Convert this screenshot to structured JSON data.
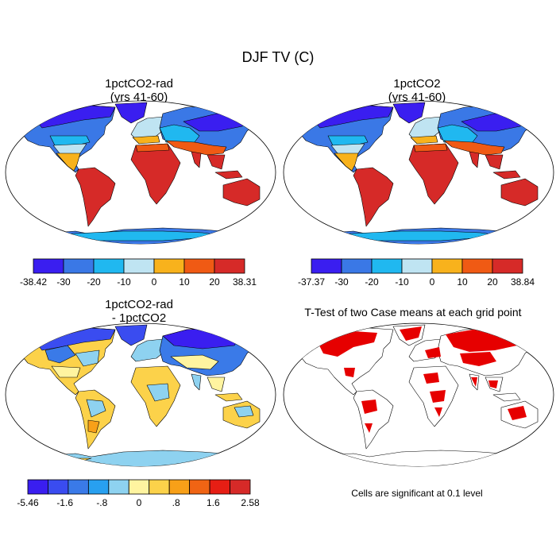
{
  "title": "DJF TV (C)",
  "panels": {
    "p1": {
      "title_line1": "1pctCO2-rad",
      "title_line2": "(yrs 41-60)"
    },
    "p2": {
      "title_line1": "1pctCO2",
      "title_line2": "(yrs 41-60)"
    },
    "p3": {
      "title_line1": "1pctCO2-rad",
      "title_line2": "- 1pctCO2"
    },
    "p4": {
      "title": "T-Test of two Case means at each grid point",
      "note": "Cells are significant at 0.1 level"
    }
  },
  "colorbars": {
    "bar1": {
      "labels": [
        "-38.42",
        "-30",
        "-20",
        "-10",
        "0",
        "10",
        "20",
        "38.31"
      ],
      "colors": [
        "#3a1ef0",
        "#3a78e6",
        "#20b8f0",
        "#bfe4f2",
        "#f8b21c",
        "#f05a14",
        "#d62a28"
      ]
    },
    "bar2": {
      "labels": [
        "-37.37",
        "-30",
        "-20",
        "-10",
        "0",
        "10",
        "20",
        "38.84"
      ],
      "colors": [
        "#3a1ef0",
        "#3a78e6",
        "#20b8f0",
        "#bfe4f2",
        "#f8b21c",
        "#f05a14",
        "#d62a28"
      ]
    },
    "bar3": {
      "labels": [
        "-5.46",
        "-1.6",
        "-.8",
        "0",
        ".8",
        "1.6",
        "2.58"
      ],
      "colors": [
        "#3a1ef0",
        "#3a4cf0",
        "#3a7ae8",
        "#28a0f0",
        "#8ed2f0",
        "#fff4a0",
        "#fcd24a",
        "#f8a018",
        "#f06414",
        "#e61e14",
        "#d62a28"
      ]
    }
  }
}
